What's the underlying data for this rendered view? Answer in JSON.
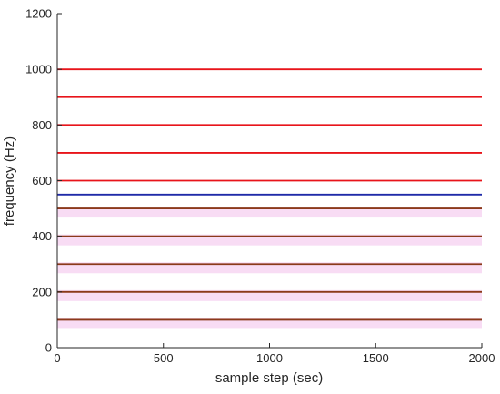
{
  "chart_data": {
    "type": "line",
    "title": "",
    "xlabel": "sample step (sec)",
    "ylabel": "frequency (Hz)",
    "xlim": [
      0,
      2000
    ],
    "ylim": [
      0,
      1200
    ],
    "x_ticks": [
      0,
      500,
      1000,
      1500,
      2000
    ],
    "y_ticks": [
      0,
      200,
      400,
      600,
      800,
      1000,
      1200
    ],
    "grid": false,
    "legend": "none",
    "x": [
      0,
      2000
    ],
    "series": [
      {
        "values": [
          100,
          100
        ],
        "color": "#8b3a1a",
        "band_color": "#f5d0f0"
      },
      {
        "values": [
          200,
          200
        ],
        "color": "#8b3a1a",
        "band_color": "#f5d0f0"
      },
      {
        "values": [
          300,
          300
        ],
        "color": "#8b3a1a",
        "band_color": "#f5d0f0"
      },
      {
        "values": [
          400,
          400
        ],
        "color": "#8b3a1a",
        "band_color": "#f5d0f0"
      },
      {
        "values": [
          500,
          500
        ],
        "color": "#8b3a1a",
        "band_color": "#f5d0f0"
      },
      {
        "values": [
          550,
          550
        ],
        "color": "#1f2aa8"
      },
      {
        "values": [
          600,
          600
        ],
        "color": "#e8141a"
      },
      {
        "values": [
          700,
          700
        ],
        "color": "#e8141a"
      },
      {
        "values": [
          800,
          800
        ],
        "color": "#e8141a"
      },
      {
        "values": [
          900,
          900
        ],
        "color": "#e8141a"
      },
      {
        "values": [
          1000,
          1000
        ],
        "color": "#e8141a"
      }
    ]
  }
}
